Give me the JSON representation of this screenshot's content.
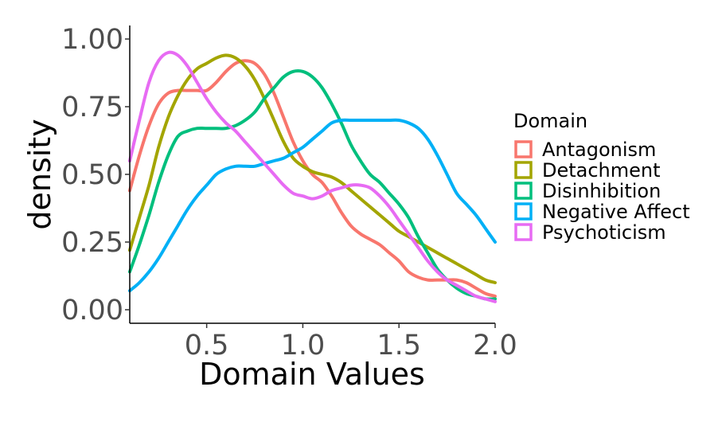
{
  "chart_data": {
    "type": "line",
    "title": "",
    "xlabel": "Domain Values",
    "ylabel": "density",
    "xlim": [
      0.1,
      2.0
    ],
    "ylim": [
      -0.05,
      1.05
    ],
    "x_ticks": [
      0.5,
      1.0,
      1.5,
      2.0
    ],
    "x_tick_labels": [
      "0.5",
      "1.0",
      "1.5",
      "2.0"
    ],
    "y_ticks": [
      0.0,
      0.25,
      0.5,
      0.75,
      1.0
    ],
    "y_tick_labels": [
      "0.00",
      "0.25",
      "0.50",
      "0.75",
      "1.00"
    ],
    "grid": false,
    "legend": {
      "title": "Domain",
      "position": "right"
    },
    "series": [
      {
        "name": "Antagonism",
        "color": "#F8766D",
        "points": [
          [
            0.1,
            0.44
          ],
          [
            0.15,
            0.57
          ],
          [
            0.2,
            0.68
          ],
          [
            0.25,
            0.76
          ],
          [
            0.3,
            0.8
          ],
          [
            0.35,
            0.81
          ],
          [
            0.4,
            0.81
          ],
          [
            0.45,
            0.81
          ],
          [
            0.5,
            0.81
          ],
          [
            0.55,
            0.84
          ],
          [
            0.6,
            0.88
          ],
          [
            0.65,
            0.91
          ],
          [
            0.7,
            0.92
          ],
          [
            0.75,
            0.91
          ],
          [
            0.8,
            0.87
          ],
          [
            0.85,
            0.8
          ],
          [
            0.9,
            0.71
          ],
          [
            0.95,
            0.62
          ],
          [
            1.0,
            0.55
          ],
          [
            1.05,
            0.5
          ],
          [
            1.1,
            0.47
          ],
          [
            1.15,
            0.42
          ],
          [
            1.2,
            0.36
          ],
          [
            1.25,
            0.31
          ],
          [
            1.3,
            0.28
          ],
          [
            1.35,
            0.26
          ],
          [
            1.4,
            0.24
          ],
          [
            1.45,
            0.21
          ],
          [
            1.5,
            0.18
          ],
          [
            1.55,
            0.14
          ],
          [
            1.6,
            0.12
          ],
          [
            1.65,
            0.11
          ],
          [
            1.7,
            0.11
          ],
          [
            1.75,
            0.11
          ],
          [
            1.8,
            0.11
          ],
          [
            1.85,
            0.1
          ],
          [
            1.9,
            0.08
          ],
          [
            1.95,
            0.06
          ],
          [
            2.0,
            0.05
          ]
        ]
      },
      {
        "name": "Detachment",
        "color": "#A3A500",
        "points": [
          [
            0.1,
            0.22
          ],
          [
            0.15,
            0.34
          ],
          [
            0.2,
            0.46
          ],
          [
            0.25,
            0.6
          ],
          [
            0.3,
            0.71
          ],
          [
            0.35,
            0.79
          ],
          [
            0.4,
            0.85
          ],
          [
            0.45,
            0.89
          ],
          [
            0.5,
            0.91
          ],
          [
            0.55,
            0.93
          ],
          [
            0.6,
            0.94
          ],
          [
            0.65,
            0.93
          ],
          [
            0.7,
            0.9
          ],
          [
            0.75,
            0.85
          ],
          [
            0.8,
            0.78
          ],
          [
            0.85,
            0.7
          ],
          [
            0.9,
            0.62
          ],
          [
            0.95,
            0.56
          ],
          [
            1.0,
            0.53
          ],
          [
            1.05,
            0.51
          ],
          [
            1.1,
            0.5
          ],
          [
            1.15,
            0.49
          ],
          [
            1.2,
            0.47
          ],
          [
            1.25,
            0.44
          ],
          [
            1.3,
            0.41
          ],
          [
            1.35,
            0.38
          ],
          [
            1.4,
            0.35
          ],
          [
            1.45,
            0.32
          ],
          [
            1.5,
            0.29
          ],
          [
            1.55,
            0.27
          ],
          [
            1.6,
            0.25
          ],
          [
            1.65,
            0.23
          ],
          [
            1.7,
            0.21
          ],
          [
            1.75,
            0.19
          ],
          [
            1.8,
            0.17
          ],
          [
            1.85,
            0.15
          ],
          [
            1.9,
            0.13
          ],
          [
            1.95,
            0.11
          ],
          [
            2.0,
            0.1
          ]
        ]
      },
      {
        "name": "Disinhibition",
        "color": "#00BF7D",
        "points": [
          [
            0.1,
            0.14
          ],
          [
            0.15,
            0.24
          ],
          [
            0.2,
            0.35
          ],
          [
            0.25,
            0.47
          ],
          [
            0.3,
            0.57
          ],
          [
            0.35,
            0.64
          ],
          [
            0.4,
            0.66
          ],
          [
            0.45,
            0.67
          ],
          [
            0.5,
            0.67
          ],
          [
            0.55,
            0.67
          ],
          [
            0.6,
            0.67
          ],
          [
            0.65,
            0.68
          ],
          [
            0.7,
            0.7
          ],
          [
            0.75,
            0.73
          ],
          [
            0.8,
            0.78
          ],
          [
            0.85,
            0.82
          ],
          [
            0.9,
            0.86
          ],
          [
            0.95,
            0.88
          ],
          [
            1.0,
            0.88
          ],
          [
            1.05,
            0.86
          ],
          [
            1.1,
            0.82
          ],
          [
            1.15,
            0.76
          ],
          [
            1.2,
            0.69
          ],
          [
            1.25,
            0.61
          ],
          [
            1.3,
            0.55
          ],
          [
            1.35,
            0.5
          ],
          [
            1.4,
            0.47
          ],
          [
            1.45,
            0.43
          ],
          [
            1.5,
            0.39
          ],
          [
            1.55,
            0.34
          ],
          [
            1.6,
            0.27
          ],
          [
            1.65,
            0.21
          ],
          [
            1.7,
            0.15
          ],
          [
            1.75,
            0.11
          ],
          [
            1.8,
            0.08
          ],
          [
            1.85,
            0.06
          ],
          [
            1.9,
            0.05
          ],
          [
            1.95,
            0.04
          ],
          [
            2.0,
            0.04
          ]
        ]
      },
      {
        "name": "Negative Affect",
        "color": "#00B0F6",
        "points": [
          [
            0.1,
            0.07
          ],
          [
            0.15,
            0.1
          ],
          [
            0.2,
            0.14
          ],
          [
            0.25,
            0.19
          ],
          [
            0.3,
            0.25
          ],
          [
            0.35,
            0.31
          ],
          [
            0.4,
            0.37
          ],
          [
            0.45,
            0.42
          ],
          [
            0.5,
            0.46
          ],
          [
            0.55,
            0.5
          ],
          [
            0.6,
            0.52
          ],
          [
            0.65,
            0.53
          ],
          [
            0.7,
            0.53
          ],
          [
            0.75,
            0.53
          ],
          [
            0.8,
            0.54
          ],
          [
            0.85,
            0.55
          ],
          [
            0.9,
            0.56
          ],
          [
            0.95,
            0.58
          ],
          [
            1.0,
            0.6
          ],
          [
            1.05,
            0.63
          ],
          [
            1.1,
            0.66
          ],
          [
            1.15,
            0.69
          ],
          [
            1.2,
            0.7
          ],
          [
            1.25,
            0.7
          ],
          [
            1.3,
            0.7
          ],
          [
            1.35,
            0.7
          ],
          [
            1.4,
            0.7
          ],
          [
            1.45,
            0.7
          ],
          [
            1.5,
            0.7
          ],
          [
            1.55,
            0.69
          ],
          [
            1.6,
            0.67
          ],
          [
            1.65,
            0.63
          ],
          [
            1.7,
            0.57
          ],
          [
            1.75,
            0.5
          ],
          [
            1.8,
            0.43
          ],
          [
            1.85,
            0.39
          ],
          [
            1.9,
            0.35
          ],
          [
            1.95,
            0.3
          ],
          [
            2.0,
            0.25
          ]
        ]
      },
      {
        "name": "Psychoticism",
        "color": "#E76BF3",
        "points": [
          [
            0.1,
            0.55
          ],
          [
            0.15,
            0.7
          ],
          [
            0.2,
            0.84
          ],
          [
            0.25,
            0.92
          ],
          [
            0.3,
            0.95
          ],
          [
            0.35,
            0.94
          ],
          [
            0.4,
            0.9
          ],
          [
            0.45,
            0.84
          ],
          [
            0.5,
            0.78
          ],
          [
            0.55,
            0.73
          ],
          [
            0.6,
            0.69
          ],
          [
            0.65,
            0.66
          ],
          [
            0.7,
            0.62
          ],
          [
            0.75,
            0.58
          ],
          [
            0.8,
            0.54
          ],
          [
            0.85,
            0.5
          ],
          [
            0.9,
            0.46
          ],
          [
            0.95,
            0.43
          ],
          [
            1.0,
            0.42
          ],
          [
            1.05,
            0.41
          ],
          [
            1.1,
            0.42
          ],
          [
            1.15,
            0.44
          ],
          [
            1.2,
            0.45
          ],
          [
            1.25,
            0.46
          ],
          [
            1.3,
            0.46
          ],
          [
            1.35,
            0.45
          ],
          [
            1.4,
            0.42
          ],
          [
            1.45,
            0.38
          ],
          [
            1.5,
            0.33
          ],
          [
            1.55,
            0.28
          ],
          [
            1.6,
            0.23
          ],
          [
            1.65,
            0.18
          ],
          [
            1.7,
            0.14
          ],
          [
            1.75,
            0.11
          ],
          [
            1.8,
            0.09
          ],
          [
            1.85,
            0.07
          ],
          [
            1.9,
            0.05
          ],
          [
            1.95,
            0.04
          ],
          [
            2.0,
            0.03
          ]
        ]
      }
    ]
  }
}
